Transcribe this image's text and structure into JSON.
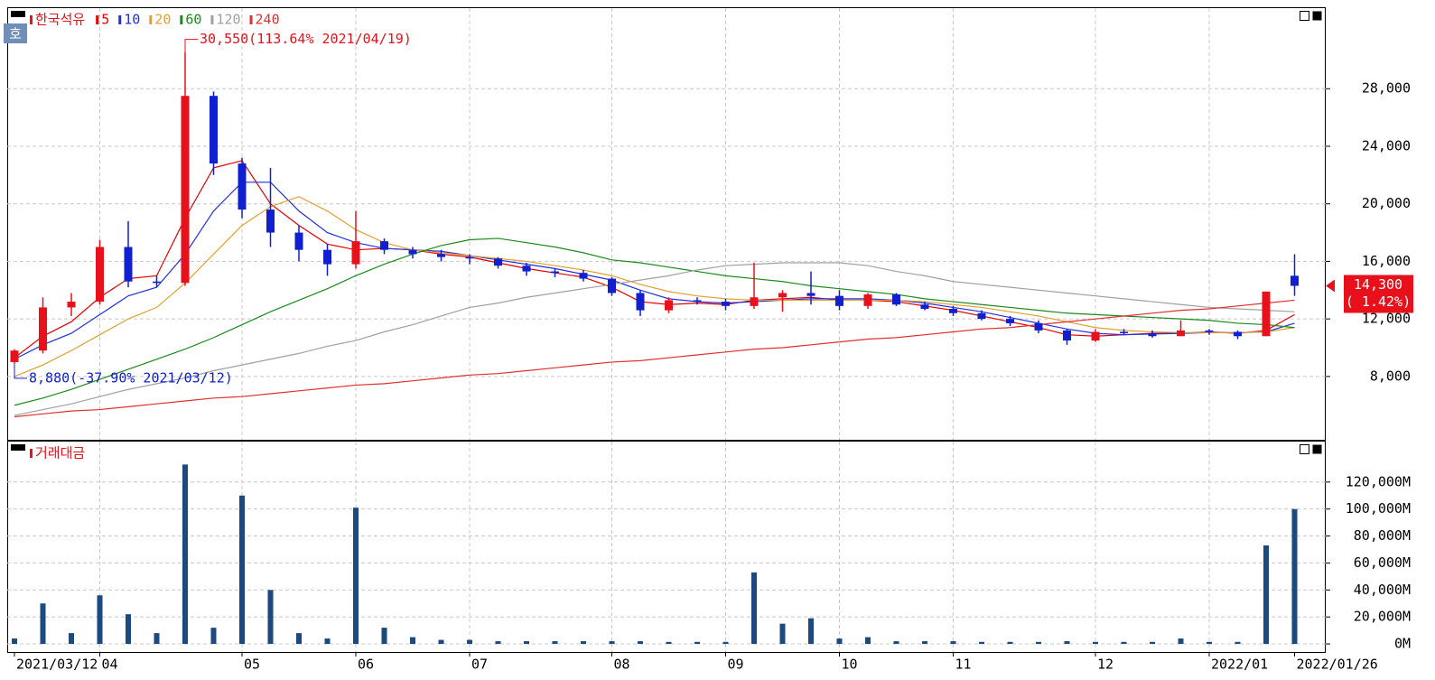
{
  "toolbar": {
    "button": "호"
  },
  "chart_data": [
    {
      "type": "candlestick",
      "title": "한국석유",
      "categories": [
        "2021/03/12",
        null,
        null,
        "04",
        null,
        null,
        null,
        null,
        "05",
        null,
        null,
        null,
        "06",
        null,
        null,
        null,
        "07",
        null,
        null,
        null,
        null,
        "08",
        null,
        null,
        null,
        "09",
        null,
        null,
        null,
        "10",
        null,
        null,
        null,
        "11",
        null,
        null,
        null,
        null,
        "12",
        null,
        null,
        null,
        "2022/01",
        null,
        null,
        "2022/01/26"
      ],
      "open": [
        9000,
        9800,
        12800,
        13200,
        17000,
        14600,
        14500,
        27500,
        22800,
        19600,
        18000,
        16800,
        15800,
        17400,
        16800,
        16500,
        16300,
        16200,
        15700,
        15300,
        15200,
        14800,
        13800,
        12600,
        13300,
        13200,
        12900,
        13500,
        13800,
        13600,
        12900,
        13700,
        13000,
        12700,
        12400,
        12000,
        11700,
        11200,
        10500,
        11100,
        11000,
        10800,
        11200,
        11100,
        10800,
        15000
      ],
      "high": [
        9900,
        13500,
        13800,
        17500,
        18800,
        15000,
        30550,
        27800,
        23200,
        22500,
        18500,
        17200,
        19500,
        17600,
        17000,
        16800,
        16500,
        16300,
        15900,
        15500,
        15400,
        14900,
        14000,
        13500,
        13500,
        13400,
        15900,
        14000,
        15300,
        14000,
        13800,
        13800,
        13200,
        12900,
        12600,
        12200,
        11900,
        11300,
        11300,
        11300,
        11200,
        11900,
        11300,
        11200,
        13900,
        16500
      ],
      "low": [
        8880,
        9600,
        12200,
        13000,
        14200,
        14200,
        14300,
        22000,
        19000,
        17000,
        16000,
        15000,
        15500,
        16500,
        16200,
        16000,
        15800,
        15500,
        15000,
        14900,
        14600,
        13600,
        12200,
        12400,
        13000,
        12600,
        12700,
        12500,
        13000,
        12600,
        12700,
        12900,
        12600,
        12200,
        11900,
        11500,
        11000,
        10200,
        10400,
        10900,
        10700,
        10800,
        10900,
        10600,
        10800,
        13600
      ],
      "close": [
        9800,
        12800,
        13200,
        17000,
        14600,
        14500,
        27500,
        22800,
        19600,
        18000,
        16800,
        15800,
        17400,
        16800,
        16500,
        16300,
        16200,
        15700,
        15300,
        15200,
        14800,
        13800,
        12600,
        13300,
        13200,
        12900,
        13500,
        13800,
        13600,
        12900,
        13700,
        13000,
        12700,
        12400,
        12000,
        11700,
        11200,
        10500,
        11100,
        11000,
        10800,
        11200,
        11100,
        10800,
        13900,
        14300
      ],
      "up_color": "#e8101a",
      "down_color": "#1020d0",
      "series": [
        {
          "name": "5",
          "color": "#e00000",
          "values": [
            9300,
            10800,
            11800,
            13500,
            14800,
            15000,
            19000,
            22500,
            23000,
            20000,
            18500,
            17200,
            16800,
            16900,
            16800,
            16500,
            16300,
            15900,
            15500,
            15200,
            14900,
            14200,
            13200,
            13000,
            13100,
            13000,
            13300,
            13400,
            13500,
            13300,
            13300,
            13200,
            12900,
            12600,
            12200,
            11800,
            11400,
            10900,
            10800,
            10900,
            11000,
            11000,
            11100,
            11000,
            11200,
            12300
          ]
        },
        {
          "name": "10",
          "color": "#2030e0",
          "values": [
            9200,
            10200,
            11000,
            12300,
            13600,
            14200,
            16500,
            19500,
            21500,
            21500,
            19500,
            18000,
            17300,
            16900,
            16800,
            16700,
            16400,
            16100,
            15800,
            15500,
            15100,
            14700,
            14000,
            13400,
            13200,
            13100,
            13200,
            13300,
            13400,
            13400,
            13400,
            13300,
            13100,
            12800,
            12500,
            12100,
            11700,
            11300,
            11000,
            10900,
            10950,
            11000,
            11050,
            11050,
            11100,
            11700
          ]
        },
        {
          "name": "20",
          "color": "#e0a030",
          "values": [
            8000,
            8800,
            9800,
            10900,
            12000,
            12800,
            14500,
            16500,
            18500,
            19800,
            20500,
            19500,
            18200,
            17300,
            16800,
            16600,
            16400,
            16200,
            16000,
            15700,
            15400,
            15000,
            14400,
            13900,
            13600,
            13400,
            13300,
            13300,
            13300,
            13300,
            13300,
            13300,
            13200,
            13000,
            12800,
            12500,
            12200,
            11800,
            11400,
            11200,
            11100,
            11050,
            11050,
            11050,
            11100,
            11400
          ]
        },
        {
          "name": "60",
          "color": "#1a8a1a",
          "values": [
            6000,
            6500,
            7100,
            7800,
            8500,
            9200,
            9900,
            10700,
            11600,
            12500,
            13300,
            14100,
            15000,
            15800,
            16500,
            17100,
            17500,
            17600,
            17300,
            17000,
            16600,
            16100,
            15900,
            15600,
            15300,
            15000,
            14800,
            14600,
            14300,
            14100,
            13900,
            13700,
            13400,
            13200,
            13000,
            12800,
            12600,
            12400,
            12300,
            12200,
            12100,
            12000,
            11900,
            11700,
            11600,
            11400
          ]
        },
        {
          "name": "120",
          "color": "#a0a0a0",
          "values": [
            5300,
            5700,
            6100,
            6600,
            7100,
            7500,
            7900,
            8400,
            8800,
            9200,
            9600,
            10100,
            10500,
            11100,
            11600,
            12200,
            12800,
            13100,
            13500,
            13800,
            14100,
            14400,
            14700,
            15000,
            15400,
            15700,
            15800,
            15900,
            15900,
            15900,
            15700,
            15300,
            15000,
            14600,
            14400,
            14200,
            14000,
            13800,
            13600,
            13400,
            13200,
            13000,
            12800,
            12700,
            12600,
            12500
          ]
        },
        {
          "name": "240",
          "color": "#e03030",
          "values": [
            5200,
            5400,
            5600,
            5700,
            5900,
            6100,
            6300,
            6500,
            6600,
            6800,
            7000,
            7200,
            7400,
            7500,
            7700,
            7900,
            8100,
            8200,
            8400,
            8600,
            8800,
            9000,
            9100,
            9300,
            9500,
            9700,
            9900,
            10000,
            10200,
            10400,
            10600,
            10700,
            10900,
            11100,
            11300,
            11400,
            11600,
            11800,
            12000,
            12200,
            12400,
            12600,
            12700,
            12900,
            13100,
            13300
          ]
        }
      ],
      "ylim": [
        3600,
        33600
      ],
      "yticks": [
        {
          "value": 8000,
          "label": "8,000"
        },
        {
          "value": 12000,
          "label": "12,000"
        },
        {
          "value": 16000,
          "label": "16,000"
        },
        {
          "value": 20000,
          "label": "20,000"
        },
        {
          "value": 24000,
          "label": "24,000"
        },
        {
          "value": 28000,
          "label": "28,000"
        }
      ],
      "grid": true,
      "annotations": [
        {
          "value": 30550,
          "label": "30,550(113.64% 2021/04/19)"
        },
        {
          "value": 8880,
          "label": "8,880(-37.90% 2021/03/12)"
        }
      ],
      "price_tag": {
        "value": 14300,
        "label": "14,300",
        "change_label": "( 1.42%)"
      }
    },
    {
      "type": "bar",
      "title": "거래대금",
      "values": [
        4000,
        30000,
        8000,
        36000,
        22000,
        8000,
        133000,
        12000,
        110000,
        40000,
        8000,
        4000,
        101000,
        12000,
        5000,
        3000,
        3000,
        2000,
        2000,
        2000,
        2000,
        2000,
        2000,
        1500,
        1500,
        1500,
        53000,
        15000,
        19000,
        4000,
        5000,
        2000,
        2000,
        2000,
        1500,
        1500,
        1500,
        2000,
        1500,
        1500,
        1500,
        4000,
        1500,
        1500,
        73000,
        100000
      ],
      "color": "#1a4a80",
      "ylim": [
        -6000,
        150000
      ],
      "yticks": [
        {
          "value": 0,
          "label": "0M"
        },
        {
          "value": 20000,
          "label": "20,000M"
        },
        {
          "value": 40000,
          "label": "40,000M"
        },
        {
          "value": 60000,
          "label": "60,000M"
        },
        {
          "value": 80000,
          "label": "80,000M"
        },
        {
          "value": 100000,
          "label": "100,000M"
        },
        {
          "value": 120000,
          "label": "120,000M"
        }
      ],
      "grid": true
    }
  ]
}
